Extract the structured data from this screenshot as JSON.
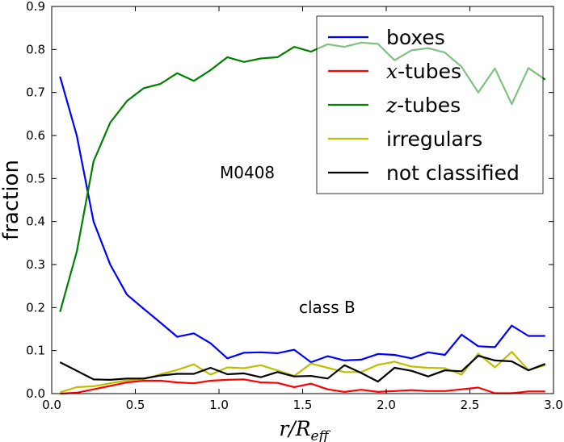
{
  "chart_data": {
    "type": "line",
    "xlabel": "r/R_eff",
    "ylabel": "fraction",
    "xlim": [
      0.0,
      3.0
    ],
    "ylim": [
      0.0,
      0.9
    ],
    "xticks": [
      "0.0",
      "0.5",
      "1.0",
      "1.5",
      "2.0",
      "2.5",
      "3.0"
    ],
    "yticks": [
      "0.0",
      "0.1",
      "0.2",
      "0.3",
      "0.4",
      "0.5",
      "0.6",
      "0.7",
      "0.8",
      "0.9"
    ],
    "annotations": [
      {
        "text": "M0408",
        "x": 1.2,
        "y": 0.5
      },
      {
        "text": "class B",
        "x": 1.7,
        "y": 0.19
      }
    ],
    "legend_position": "top-right",
    "x": [
      0.05,
      0.15,
      0.25,
      0.35,
      0.45,
      0.55,
      0.65,
      0.75,
      0.85,
      0.95,
      1.05,
      1.15,
      1.25,
      1.35,
      1.45,
      1.55,
      1.65,
      1.75,
      1.85,
      1.95,
      2.05,
      2.15,
      2.25,
      2.35,
      2.45,
      2.55,
      2.65,
      2.75,
      2.85,
      2.95
    ],
    "series": [
      {
        "name": "boxes",
        "color": "#0000ff",
        "values": [
          0.737,
          0.6,
          0.4,
          0.3,
          0.23,
          0.197,
          0.165,
          0.132,
          0.14,
          0.117,
          0.082,
          0.095,
          0.096,
          0.094,
          0.102,
          0.073,
          0.087,
          0.077,
          0.079,
          0.092,
          0.09,
          0.082,
          0.096,
          0.09,
          0.137,
          0.11,
          0.108,
          0.158,
          0.134,
          0.134
        ]
      },
      {
        "name": "x-tubes",
        "color": "#ff0000",
        "values": [
          0.0,
          0.002,
          0.01,
          0.018,
          0.026,
          0.03,
          0.03,
          0.026,
          0.024,
          0.03,
          0.032,
          0.033,
          0.026,
          0.025,
          0.015,
          0.023,
          0.01,
          0.004,
          0.009,
          0.004,
          0.006,
          0.008,
          0.006,
          0.006,
          0.01,
          0.014,
          0.001,
          0.001,
          0.005,
          0.005
        ]
      },
      {
        "name": "z-tubes",
        "color": "#008000",
        "values": [
          0.19,
          0.33,
          0.54,
          0.63,
          0.68,
          0.71,
          0.72,
          0.745,
          0.727,
          0.752,
          0.782,
          0.771,
          0.779,
          0.782,
          0.806,
          0.795,
          0.812,
          0.806,
          0.816,
          0.813,
          0.775,
          0.798,
          0.803,
          0.793,
          0.76,
          0.7,
          0.756,
          0.673,
          0.757,
          0.73
        ]
      },
      {
        "name": "irregulars",
        "color": "#bfbf00",
        "values": [
          0.003,
          0.015,
          0.017,
          0.024,
          0.031,
          0.034,
          0.045,
          0.055,
          0.068,
          0.044,
          0.061,
          0.059,
          0.066,
          0.054,
          0.041,
          0.07,
          0.06,
          0.05,
          0.05,
          0.067,
          0.074,
          0.063,
          0.06,
          0.059,
          0.044,
          0.093,
          0.061,
          0.097,
          0.055,
          0.066
        ]
      },
      {
        "name": "not classified",
        "color": "#000000",
        "values": [
          0.073,
          0.053,
          0.033,
          0.032,
          0.035,
          0.035,
          0.042,
          0.046,
          0.046,
          0.06,
          0.045,
          0.047,
          0.038,
          0.05,
          0.04,
          0.041,
          0.035,
          0.066,
          0.048,
          0.028,
          0.06,
          0.053,
          0.04,
          0.054,
          0.052,
          0.088,
          0.077,
          0.075,
          0.054,
          0.069
        ]
      }
    ],
    "legend": [
      {
        "pre": "",
        "ital": "",
        "post": "boxes"
      },
      {
        "pre": "",
        "ital": "x",
        "post": "-tubes"
      },
      {
        "pre": "",
        "ital": "z",
        "post": "-tubes"
      },
      {
        "pre": "",
        "ital": "",
        "post": "irregulars"
      },
      {
        "pre": "",
        "ital": "",
        "post": "not classified"
      }
    ]
  }
}
